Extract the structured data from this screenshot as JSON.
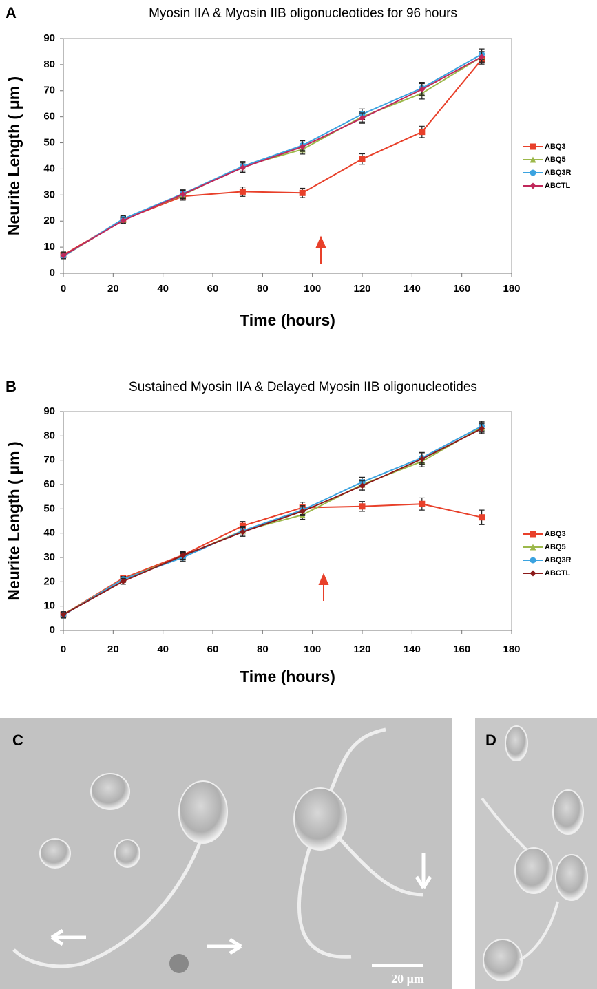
{
  "chart_data": [
    {
      "type": "line",
      "panel_label": "A",
      "title": "Myosin IIA & Myosin IIB oligonucleotides for 96 hours",
      "x_label": "Time (hours)",
      "y_label": "Neurite Length ( μm )",
      "x": [
        0,
        24,
        48,
        72,
        96,
        120,
        144,
        168
      ],
      "xlim": [
        0,
        180
      ],
      "xticks": [
        0,
        20,
        40,
        60,
        80,
        100,
        120,
        140,
        160,
        180
      ],
      "ylim": [
        0,
        90
      ],
      "yticks": [
        0,
        10,
        20,
        30,
        40,
        50,
        60,
        70,
        80,
        90
      ],
      "grid": false,
      "series": [
        {
          "name": "ABQ3",
          "color": "#e8402a",
          "marker": "square",
          "values": [
            7,
            20.5,
            29.5,
            31.3,
            30.8,
            43.8,
            54.2,
            82
          ],
          "errors": [
            1.2,
            1.2,
            1.5,
            1.8,
            1.8,
            2,
            2.2,
            1.8
          ]
        },
        {
          "name": "ABQ5",
          "color": "#9cb84a",
          "marker": "triangle",
          "values": [
            6.5,
            20.5,
            30,
            41,
            47.5,
            60,
            69,
            83
          ],
          "errors": [
            1.2,
            1.2,
            1.5,
            1.8,
            1.8,
            2,
            2.2,
            2
          ]
        },
        {
          "name": "ABQ3R",
          "color": "#3ba3e0",
          "marker": "circle",
          "values": [
            6.5,
            20.8,
            30.5,
            41,
            49,
            61,
            71,
            84
          ],
          "errors": [
            1.2,
            1.2,
            1.5,
            1.8,
            1.8,
            2,
            2.2,
            2
          ]
        },
        {
          "name": "ABCTL",
          "color": "#c0285a",
          "marker": "diamond",
          "values": [
            6.8,
            20.2,
            30.3,
            40.5,
            48.5,
            59.5,
            70.5,
            83
          ],
          "errors": [
            1.2,
            1.2,
            1.5,
            1.8,
            1.8,
            2,
            2.2,
            2
          ]
        }
      ]
    },
    {
      "type": "line",
      "panel_label": "B",
      "title": "Sustained Myosin IIA & Delayed Myosin IIB oligonucleotides",
      "x_label": "Time (hours)",
      "y_label": "Neurite Length ( μm )",
      "x": [
        0,
        24,
        48,
        72,
        96,
        120,
        144,
        168
      ],
      "xlim": [
        0,
        180
      ],
      "xticks": [
        0,
        20,
        40,
        60,
        80,
        100,
        120,
        140,
        160,
        180
      ],
      "ylim": [
        0,
        90
      ],
      "yticks": [
        0,
        10,
        20,
        30,
        40,
        50,
        60,
        70,
        80,
        90
      ],
      "grid": false,
      "series": [
        {
          "name": "ABQ3",
          "color": "#e8402a",
          "marker": "square",
          "values": [
            6.5,
            21.5,
            31,
            43,
            50.5,
            51,
            52,
            46.5
          ],
          "errors": [
            1.2,
            1.2,
            1.5,
            1.8,
            2.2,
            2,
            2.5,
            3
          ]
        },
        {
          "name": "ABQ5",
          "color": "#9cb84a",
          "marker": "triangle",
          "values": [
            6.5,
            21,
            30.5,
            41,
            47.5,
            60,
            69.5,
            83.5
          ],
          "errors": [
            1.2,
            1.2,
            1.5,
            1.8,
            1.8,
            2,
            2.2,
            2
          ]
        },
        {
          "name": "ABQ3R",
          "color": "#3ba3e0",
          "marker": "circle",
          "values": [
            6.3,
            21,
            30,
            41,
            49.5,
            61,
            71,
            84
          ],
          "errors": [
            1.2,
            1.2,
            1.5,
            1.8,
            1.8,
            2,
            2.2,
            2
          ]
        },
        {
          "name": "ABCTL",
          "color": "#8b1a1a",
          "marker": "diamond",
          "values": [
            6.5,
            20.2,
            30.8,
            40.5,
            49,
            59.5,
            70.5,
            83
          ],
          "errors": [
            1.2,
            1.2,
            1.5,
            1.8,
            1.8,
            2,
            2.2,
            2
          ]
        }
      ]
    }
  ],
  "panels": [
    {
      "label": "C",
      "scale_bar": "20 μm"
    },
    {
      "label": "D"
    }
  ]
}
